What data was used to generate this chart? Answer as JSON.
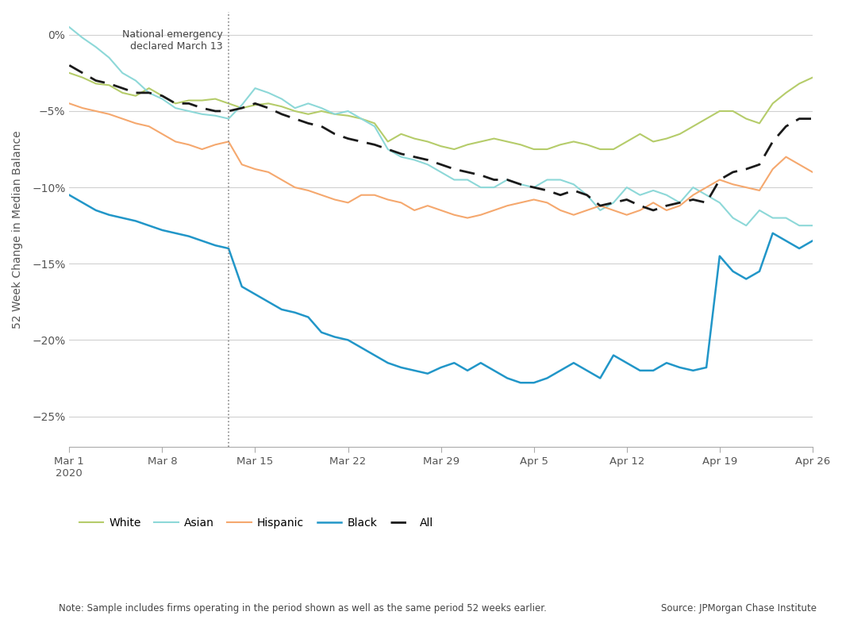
{
  "ylabel": "52 Week Change in Median Balance",
  "ylim": [
    -27,
    1.5
  ],
  "yticks": [
    0,
    -5,
    -10,
    -15,
    -20,
    -25
  ],
  "ytick_labels": [
    "0%",
    "−5%",
    "−10%",
    "−15%",
    "−20%",
    "−25%"
  ],
  "annotation_text": "National emergency\ndeclared March 13",
  "note_text": "Note: Sample includes firms operating in the period shown as well as the same period 52 weeks earlier.",
  "source_text": "Source: JPMorgan Chase Institute",
  "vline_x": 13.0,
  "background_color": "#ffffff",
  "grid_color": "#d0d0d0",
  "colors": {
    "White": "#b5cc6a",
    "Asian": "#8dd8d8",
    "Hispanic": "#f5a86e",
    "Black": "#2196c8",
    "All": "#1a1a1a"
  },
  "date_labels": {
    "1": "Mar 1\n2020",
    "8": "Mar 8",
    "15": "Mar 15",
    "22": "Mar 22",
    "29": "Mar 29",
    "36": "Apr 5",
    "43": "Apr 12",
    "50": "Apr 19",
    "57": "Apr 26"
  },
  "White": [
    -2.5,
    -2.8,
    -3.2,
    -3.3,
    -3.8,
    -4.0,
    -3.5,
    -4.0,
    -4.5,
    -4.3,
    -4.3,
    -4.2,
    -4.5,
    -4.8,
    -4.6,
    -4.5,
    -4.7,
    -5.0,
    -5.2,
    -5.0,
    -5.2,
    -5.3,
    -5.5,
    -5.8,
    -7.0,
    -6.5,
    -6.8,
    -7.0,
    -7.3,
    -7.5,
    -7.2,
    -7.0,
    -6.8,
    -7.0,
    -7.2,
    -7.5,
    -7.5,
    -7.2,
    -7.0,
    -7.2,
    -7.5,
    -7.5,
    -7.0,
    -6.5,
    -7.0,
    -6.8,
    -6.5,
    -6.0,
    -5.5,
    -5.0,
    -5.0,
    -5.5,
    -5.8,
    -4.5,
    -3.8,
    -3.2,
    -2.8
  ],
  "Asian": [
    0.5,
    -0.2,
    -0.8,
    -1.5,
    -2.5,
    -3.0,
    -3.8,
    -4.2,
    -4.8,
    -5.0,
    -5.2,
    -5.3,
    -5.5,
    -4.6,
    -3.5,
    -3.8,
    -4.2,
    -4.8,
    -4.5,
    -4.8,
    -5.2,
    -5.0,
    -5.5,
    -6.0,
    -7.5,
    -8.0,
    -8.2,
    -8.5,
    -9.0,
    -9.5,
    -9.5,
    -10.0,
    -10.0,
    -9.5,
    -9.8,
    -10.0,
    -9.5,
    -9.5,
    -9.8,
    -10.5,
    -11.5,
    -11.0,
    -10.0,
    -10.5,
    -10.2,
    -10.5,
    -11.0,
    -10.0,
    -10.5,
    -11.0,
    -12.0,
    -12.5,
    -11.5,
    -12.0,
    -12.0,
    -12.5,
    -12.5
  ],
  "Hispanic": [
    -4.5,
    -4.8,
    -5.0,
    -5.2,
    -5.5,
    -5.8,
    -6.0,
    -6.5,
    -7.0,
    -7.2,
    -7.5,
    -7.2,
    -7.0,
    -8.5,
    -8.8,
    -9.0,
    -9.5,
    -10.0,
    -10.2,
    -10.5,
    -10.8,
    -11.0,
    -10.5,
    -10.5,
    -10.8,
    -11.0,
    -11.5,
    -11.2,
    -11.5,
    -11.8,
    -12.0,
    -11.8,
    -11.5,
    -11.2,
    -11.0,
    -10.8,
    -11.0,
    -11.5,
    -11.8,
    -11.5,
    -11.2,
    -11.5,
    -11.8,
    -11.5,
    -11.0,
    -11.5,
    -11.2,
    -10.5,
    -10.0,
    -9.5,
    -9.8,
    -10.0,
    -10.2,
    -8.8,
    -8.0,
    -8.5,
    -9.0
  ],
  "Black": [
    -10.5,
    -11.0,
    -11.5,
    -11.8,
    -12.0,
    -12.2,
    -12.5,
    -12.8,
    -13.0,
    -13.2,
    -13.5,
    -13.8,
    -14.0,
    -16.5,
    -17.0,
    -17.5,
    -18.0,
    -18.2,
    -18.5,
    -19.5,
    -19.8,
    -20.0,
    -20.5,
    -21.0,
    -21.5,
    -21.8,
    -22.0,
    -22.2,
    -21.8,
    -21.5,
    -22.0,
    -21.5,
    -22.0,
    -22.5,
    -22.8,
    -22.8,
    -22.5,
    -22.0,
    -21.5,
    -22.0,
    -22.5,
    -21.0,
    -21.5,
    -22.0,
    -22.0,
    -21.5,
    -21.8,
    -22.0,
    -21.8,
    -14.5,
    -15.5,
    -16.0,
    -15.5,
    -13.0,
    -13.5,
    -14.0,
    -13.5
  ],
  "All": [
    -2.0,
    -2.5,
    -3.0,
    -3.2,
    -3.5,
    -3.8,
    -3.8,
    -4.0,
    -4.5,
    -4.5,
    -4.8,
    -5.0,
    -5.0,
    -4.8,
    -4.5,
    -4.8,
    -5.2,
    -5.5,
    -5.8,
    -6.0,
    -6.5,
    -6.8,
    -7.0,
    -7.2,
    -7.5,
    -7.8,
    -8.0,
    -8.2,
    -8.5,
    -8.8,
    -9.0,
    -9.2,
    -9.5,
    -9.5,
    -9.8,
    -10.0,
    -10.2,
    -10.5,
    -10.2,
    -10.5,
    -11.2,
    -11.0,
    -10.8,
    -11.2,
    -11.5,
    -11.2,
    -11.0,
    -10.8,
    -11.0,
    -9.5,
    -9.0,
    -8.8,
    -8.5,
    -7.0,
    -6.0,
    -5.5,
    -5.5
  ]
}
